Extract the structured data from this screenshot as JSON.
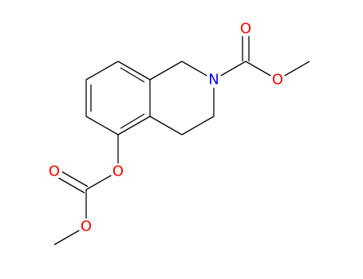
{
  "atoms": [
    {
      "label": "N"
    },
    {
      "label": "O"
    },
    {
      "label": "O"
    },
    {
      "label": "O"
    },
    {
      "label": "O"
    },
    {
      "label": "O"
    }
  ]
}
